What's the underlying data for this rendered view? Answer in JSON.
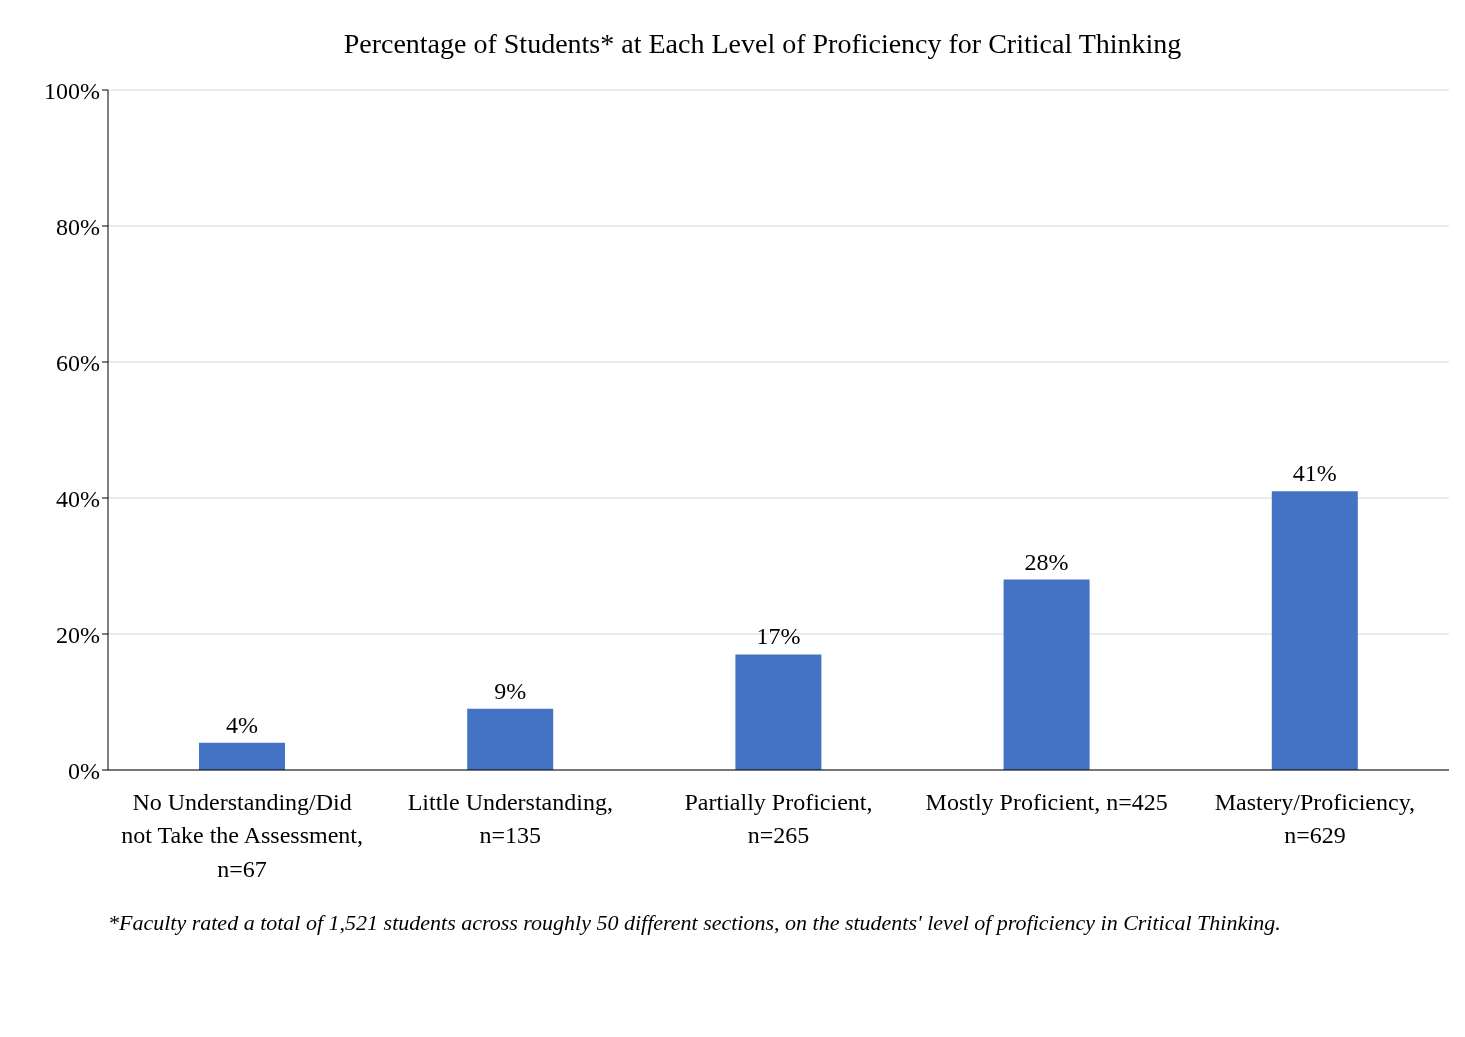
{
  "chart_data": {
    "type": "bar",
    "title": "Percentage of Students* at Each Level of Proficiency for Critical Thinking",
    "categories": [
      "No Understanding/Did not Take the Assessment, n=67",
      "Little Understanding, n=135",
      "Partially Proficient, n=265",
      "Mostly Proficient, n=425",
      "Mastery/Proficiency, n=629"
    ],
    "values": [
      4,
      9,
      17,
      28,
      41
    ],
    "value_labels": [
      "4%",
      "9%",
      "17%",
      "28%",
      "41%"
    ],
    "color": "#4472c4",
    "ylim": [
      0,
      100
    ],
    "yticks": [
      {
        "value": 0,
        "label": "0%"
      },
      {
        "value": 20,
        "label": "20%"
      },
      {
        "value": 40,
        "label": "40%"
      },
      {
        "value": 60,
        "label": "60%"
      },
      {
        "value": 80,
        "label": "80%"
      },
      {
        "value": 100,
        "label": "100%"
      }
    ],
    "grid": "y",
    "legend": false,
    "annotations": [
      "*Faculty rated a total of 1,521 students across roughly 50 different sections, on the students' level of proficiency in Critical Thinking."
    ]
  }
}
